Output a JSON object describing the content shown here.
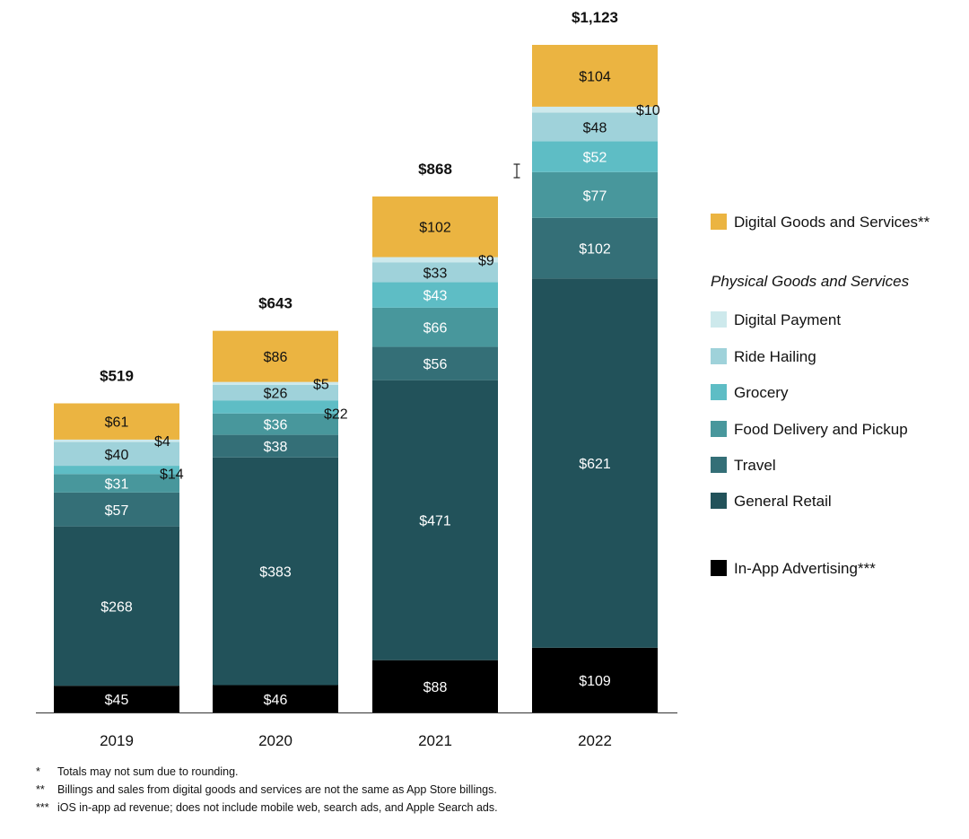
{
  "chart_data": {
    "type": "bar",
    "stacked": true,
    "categories": [
      "2019",
      "2020",
      "2021",
      "2022"
    ],
    "totals": [
      "$519",
      "$643",
      "$868",
      "$1,123"
    ],
    "ylim": [
      0,
      1123
    ],
    "grid": false,
    "legend_position": "right",
    "series": [
      {
        "name": "In-App Advertising***",
        "color": "#000000",
        "values": [
          45,
          46,
          88,
          109
        ],
        "labels": [
          "$45",
          "$46",
          "$88",
          "$109"
        ]
      },
      {
        "name": "General Retail",
        "color": "#22525a",
        "values": [
          268,
          383,
          471,
          621
        ],
        "labels": [
          "$268",
          "$383",
          "$471",
          "$621"
        ]
      },
      {
        "name": "Travel",
        "color": "#346f77",
        "values": [
          57,
          38,
          56,
          102
        ],
        "labels": [
          "$57",
          "$38",
          "$56",
          "$102"
        ]
      },
      {
        "name": "Food Delivery and Pickup",
        "color": "#48979c",
        "values": [
          31,
          36,
          66,
          77
        ],
        "labels": [
          "$31",
          "$36",
          "$66",
          "$77"
        ]
      },
      {
        "name": "Grocery",
        "color": "#5ebdc5",
        "values": [
          14,
          22,
          43,
          52
        ],
        "labels": [
          "$14",
          "$22",
          "$43",
          "$52"
        ]
      },
      {
        "name": "Ride Hailing",
        "color": "#9fd2da",
        "values": [
          40,
          26,
          33,
          48
        ],
        "labels": [
          "$40",
          "$26",
          "$33",
          "$48"
        ]
      },
      {
        "name": "Digital Payment",
        "color": "#cde9ec",
        "values": [
          4,
          5,
          9,
          10
        ],
        "labels": [
          "$4",
          "$5",
          "$9",
          "$10"
        ]
      },
      {
        "name": "Digital Goods and Services**",
        "color": "#ebb441",
        "values": [
          61,
          86,
          102,
          104
        ],
        "labels": [
          "$61",
          "$86",
          "$102",
          "$104"
        ]
      }
    ],
    "legend": {
      "top_item": "Digital Goods and Services**",
      "group_heading": "Physical Goods and Services",
      "group_items": [
        "Digital Payment",
        "Ride Hailing",
        "Grocery",
        "Food Delivery and Pickup",
        "Travel",
        "General Retail"
      ],
      "bottom_item": "In-App Advertising***"
    },
    "footnotes": [
      {
        "mark": "*",
        "text": "Totals may not sum due to rounding."
      },
      {
        "mark": "**",
        "text": "Billings and sales from digital goods and services are not the same as App Store billings."
      },
      {
        "mark": "***",
        "text": "iOS in-app ad revenue; does not include mobile web, search ads, and Apple Search ads."
      }
    ]
  }
}
